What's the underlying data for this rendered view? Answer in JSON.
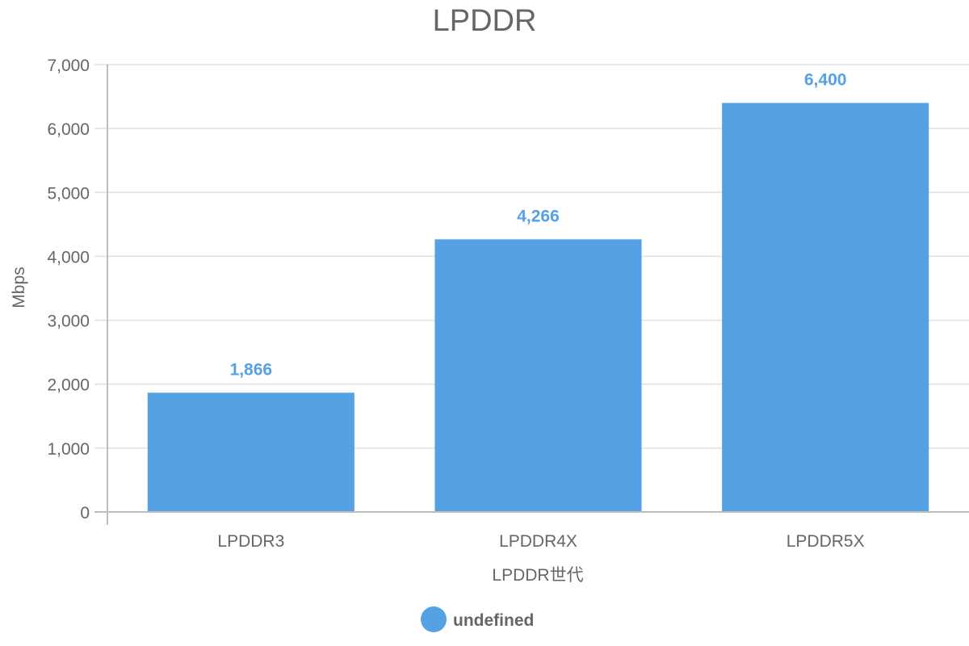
{
  "chart_data": {
    "type": "bar",
    "title": "LPDDR",
    "xlabel": "LPDDR世代",
    "ylabel": "Mbps",
    "categories": [
      "LPDDR3",
      "LPDDR4X",
      "LPDDR5X"
    ],
    "series": [
      {
        "name": "undefined",
        "values": [
          1866,
          4266,
          6400
        ],
        "data_labels": [
          "1,866",
          "4,266",
          "6,400"
        ],
        "color": "#55a1e3"
      }
    ],
    "ylim": [
      0,
      7000
    ],
    "y_ticks": [
      0,
      1000,
      2000,
      3000,
      4000,
      5000,
      6000,
      7000
    ],
    "y_tick_labels": [
      "0",
      "1,000",
      "2,000",
      "3,000",
      "4,000",
      "5,000",
      "6,000",
      "7,000"
    ],
    "grid": true,
    "legend_position": "bottom"
  }
}
